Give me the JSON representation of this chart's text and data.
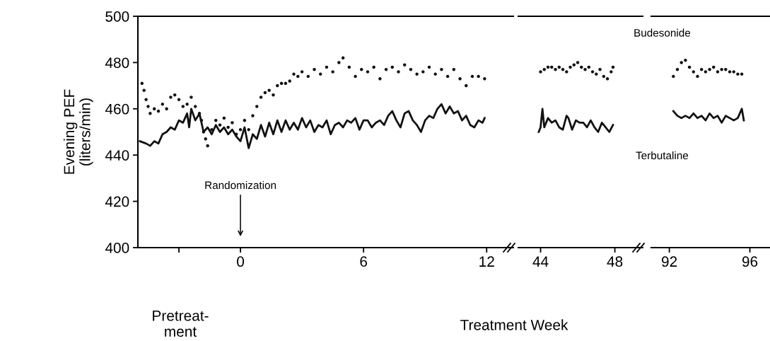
{
  "chart_data": [
    {
      "type": "line",
      "ylabel": "Evening PEF\n(liters/min)",
      "xlabel": "Treatment Week",
      "xlim": [
        -5,
        13.3
      ],
      "xticks": [
        {
          "value": -3,
          "label": null
        },
        0,
        6,
        12
      ],
      "ylim": [
        400,
        500
      ],
      "yticks": [
        400,
        420,
        440,
        460,
        480,
        500
      ],
      "annotations": [
        "Randomization",
        "Pretreat-\nment"
      ],
      "series": [
        {
          "type": "scatter",
          "marker": "circle",
          "color": "#111111",
          "x": [
            -4.8,
            -4.7,
            -4.6,
            -4.5,
            -4.4,
            -4.2,
            -4.0,
            -3.8,
            -3.6,
            -3.4,
            -3.2,
            -3.0,
            -2.8,
            -2.6,
            -2.4,
            -2.2,
            -2.0,
            -1.9,
            -1.8,
            -1.7,
            -1.6,
            -1.4,
            -1.2,
            -1.0,
            -0.8,
            -0.6,
            -0.4,
            -0.2,
            0,
            0.2,
            0.4,
            0.6,
            0.8,
            1.0,
            1.2,
            1.4,
            1.6,
            1.8,
            2.0,
            2.2,
            2.4,
            2.6,
            2.8,
            3.0,
            3.3,
            3.6,
            3.9,
            4.2,
            4.5,
            4.8,
            5.0,
            5.3,
            5.6,
            5.9,
            6.2,
            6.5,
            6.8,
            7.1,
            7.4,
            7.7,
            8.0,
            8.3,
            8.6,
            8.9,
            9.2,
            9.5,
            9.8,
            10.1,
            10.4,
            10.7,
            11.0,
            11.3,
            11.6,
            11.9
          ],
          "values": [
            471,
            468,
            464,
            461,
            458,
            460,
            459,
            462,
            460,
            465,
            466,
            464,
            461,
            462,
            465,
            461,
            458,
            455,
            450,
            447,
            444,
            451,
            455,
            453,
            456,
            452,
            454,
            449,
            451,
            455,
            451,
            457,
            461,
            465,
            467,
            468,
            466,
            470,
            471,
            471,
            472,
            475,
            474,
            476,
            474,
            477,
            475,
            478,
            476,
            480,
            482,
            478,
            474,
            477,
            476,
            478,
            473,
            477,
            478,
            476,
            479,
            477,
            475,
            476,
            478,
            475,
            477,
            474,
            477,
            473,
            470,
            474,
            474,
            473
          ]
        },
        {
          "line_style": "solid",
          "color": "#111111",
          "x": [
            -4.9,
            -4.6,
            -4.4,
            -4.2,
            -4.0,
            -3.8,
            -3.6,
            -3.4,
            -3.2,
            -3.0,
            -2.8,
            -2.6,
            -2.5,
            -2.4,
            -2.2,
            -2.0,
            -1.8,
            -1.6,
            -1.4,
            -1.2,
            -1.0,
            -0.8,
            -0.6,
            -0.4,
            -0.2,
            0,
            0.2,
            0.4,
            0.6,
            0.8,
            1.0,
            1.2,
            1.4,
            1.6,
            1.8,
            2.0,
            2.2,
            2.4,
            2.6,
            2.8,
            3.0,
            3.2,
            3.4,
            3.6,
            3.8,
            4.0,
            4.2,
            4.4,
            4.6,
            4.8,
            5.0,
            5.2,
            5.4,
            5.6,
            5.8,
            6.0,
            6.2,
            6.4,
            6.6,
            6.8,
            7.0,
            7.2,
            7.4,
            7.6,
            7.8,
            8.0,
            8.2,
            8.4,
            8.6,
            8.8,
            9.0,
            9.2,
            9.4,
            9.6,
            9.8,
            10.0,
            10.2,
            10.4,
            10.6,
            10.8,
            11.0,
            11.2,
            11.4,
            11.6,
            11.8,
            11.9
          ],
          "values": [
            446,
            445,
            444,
            446,
            445,
            449,
            450,
            452,
            451,
            455,
            454,
            458,
            452,
            460,
            455,
            458,
            450,
            452,
            449,
            453,
            450,
            452,
            449,
            451,
            448,
            446,
            452,
            443,
            449,
            447,
            453,
            448,
            454,
            449,
            455,
            450,
            455,
            451,
            454,
            451,
            456,
            452,
            455,
            450,
            453,
            452,
            455,
            449,
            453,
            454,
            452,
            455,
            454,
            456,
            451,
            455,
            455,
            452,
            454,
            455,
            453,
            457,
            459,
            455,
            452,
            458,
            459,
            455,
            453,
            450,
            455,
            457,
            456,
            460,
            462,
            458,
            461,
            458,
            459,
            455,
            457,
            453,
            452,
            455,
            454,
            456
          ]
        }
      ]
    },
    {
      "type": "line",
      "xlim": [
        42.8,
        49.5
      ],
      "xticks": [
        44,
        48
      ],
      "ylim": [
        400,
        500
      ],
      "yticks": [
        400,
        420,
        440,
        460,
        480,
        500
      ],
      "tick_labels": "x",
      "series": [
        {
          "type": "scatter",
          "marker": "circle",
          "name": "Budesonide",
          "color": "#111111",
          "x": [
            44.0,
            44.2,
            44.4,
            44.6,
            44.8,
            45.0,
            45.2,
            45.4,
            45.6,
            45.8,
            46.0,
            46.2,
            46.4,
            46.6,
            46.8,
            47.0,
            47.2,
            47.4,
            47.6,
            47.8,
            47.9
          ],
          "values": [
            476,
            477,
            478,
            478,
            477,
            478,
            477,
            476,
            478,
            479,
            480,
            478,
            477,
            478,
            476,
            475,
            477,
            474,
            473,
            476,
            478
          ]
        },
        {
          "line_style": "solid",
          "name": "Terbutaline",
          "color": "#111111",
          "x": [
            43.9,
            44.0,
            44.1,
            44.2,
            44.4,
            44.6,
            44.8,
            45.0,
            45.2,
            45.4,
            45.5,
            45.7,
            45.9,
            46.1,
            46.3,
            46.5,
            46.7,
            46.9,
            47.1,
            47.3,
            47.5,
            47.7,
            47.9
          ],
          "values": [
            450,
            452,
            460,
            452,
            456,
            454,
            455,
            452,
            451,
            457,
            456,
            451,
            455,
            454,
            454,
            452,
            455,
            452,
            450,
            454,
            452,
            450,
            453
          ]
        }
      ]
    },
    {
      "type": "line",
      "xlim": [
        91.1,
        97
      ],
      "xticks": [
        92,
        96
      ],
      "ylim": [
        400,
        500
      ],
      "yticks": [
        400,
        420,
        440,
        460,
        480,
        500
      ],
      "tick_labels": "x",
      "series": [
        {
          "type": "scatter",
          "marker": "circle",
          "color": "#111111",
          "x": [
            92.2,
            92.4,
            92.6,
            92.8,
            93.0,
            93.2,
            93.4,
            93.6,
            93.8,
            94.0,
            94.2,
            94.4,
            94.6,
            94.8,
            95.0,
            95.2,
            95.4,
            95.6
          ],
          "values": [
            474,
            477,
            480,
            481,
            478,
            476,
            474,
            477,
            476,
            477,
            478,
            476,
            477,
            477,
            476,
            476,
            475,
            475
          ]
        },
        {
          "line_style": "solid",
          "color": "#111111",
          "x": [
            92.2,
            92.4,
            92.6,
            92.8,
            93.0,
            93.2,
            93.4,
            93.6,
            93.8,
            94.0,
            94.2,
            94.4,
            94.6,
            94.8,
            95.0,
            95.2,
            95.4,
            95.6,
            95.7
          ],
          "values": [
            459,
            457,
            456,
            457,
            456,
            458,
            456,
            457,
            455,
            458,
            456,
            457,
            454,
            457,
            456,
            455,
            456,
            460,
            455
          ]
        }
      ]
    }
  ]
}
